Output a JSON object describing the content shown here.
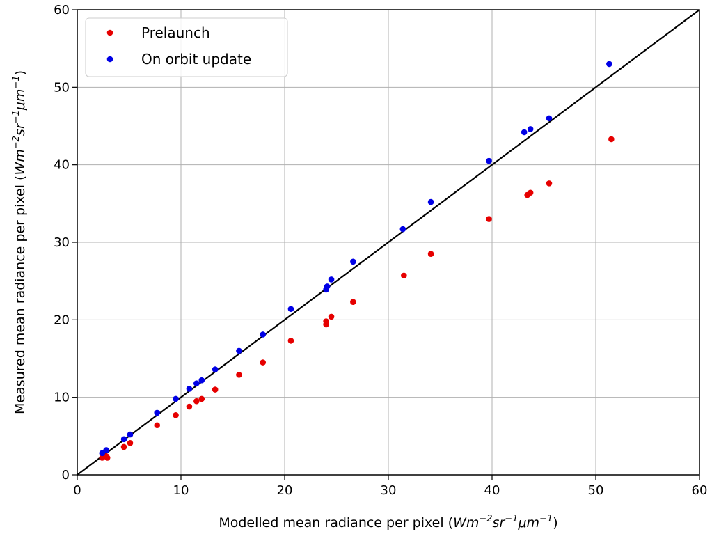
{
  "chart_data": {
    "type": "scatter",
    "xlabel": {
      "text": "Modelled mean radiance per pixel",
      "unit_prefix": "(",
      "unit_terms": [
        [
          "W",
          ""
        ],
        [
          "m",
          "−2"
        ],
        [
          "sr",
          "−1"
        ],
        [
          "μm",
          "−1"
        ]
      ],
      "unit_suffix": ")"
    },
    "ylabel": {
      "text": "Measured mean radiance per pixel",
      "unit_prefix": "(",
      "unit_terms": [
        [
          "W",
          ""
        ],
        [
          "m",
          "−2"
        ],
        [
          "sr",
          "−1"
        ],
        [
          "μm",
          "−1"
        ]
      ],
      "unit_suffix": ")"
    },
    "xlim": [
      0,
      60
    ],
    "ylim": [
      0,
      60
    ],
    "xticks": [
      "0",
      "10",
      "20",
      "30",
      "40",
      "50",
      "60"
    ],
    "yticks": [
      "0",
      "10",
      "20",
      "30",
      "40",
      "50",
      "60"
    ],
    "grid": true,
    "legend_position": "top-left",
    "reference_line": {
      "from": [
        0,
        0
      ],
      "to": [
        60,
        60
      ],
      "color": "#000000"
    },
    "series": [
      {
        "name": "Prelaunch",
        "color": "#e60000",
        "points": [
          [
            2.4,
            2.2
          ],
          [
            2.8,
            2.4
          ],
          [
            2.9,
            2.2
          ],
          [
            4.5,
            3.6
          ],
          [
            5.1,
            4.1
          ],
          [
            7.7,
            6.4
          ],
          [
            9.5,
            7.7
          ],
          [
            10.8,
            8.8
          ],
          [
            11.5,
            9.5
          ],
          [
            12.0,
            9.8
          ],
          [
            13.3,
            11.0
          ],
          [
            15.6,
            12.9
          ],
          [
            17.9,
            14.5
          ],
          [
            20.6,
            17.3
          ],
          [
            24.0,
            19.4
          ],
          [
            24.0,
            19.8
          ],
          [
            24.5,
            20.4
          ],
          [
            26.6,
            22.3
          ],
          [
            31.5,
            25.7
          ],
          [
            34.1,
            28.5
          ],
          [
            39.7,
            33.0
          ],
          [
            43.4,
            36.1
          ],
          [
            43.7,
            36.4
          ],
          [
            45.5,
            37.6
          ],
          [
            51.5,
            43.3
          ]
        ]
      },
      {
        "name": "On orbit update",
        "color": "#0000e6",
        "points": [
          [
            2.4,
            2.8
          ],
          [
            2.8,
            3.2
          ],
          [
            4.5,
            4.6
          ],
          [
            5.1,
            5.2
          ],
          [
            7.7,
            8.0
          ],
          [
            9.5,
            9.8
          ],
          [
            10.8,
            11.1
          ],
          [
            11.5,
            11.8
          ],
          [
            12.0,
            12.2
          ],
          [
            13.3,
            13.6
          ],
          [
            15.6,
            16.0
          ],
          [
            17.9,
            18.1
          ],
          [
            20.6,
            21.4
          ],
          [
            24.0,
            23.9
          ],
          [
            24.1,
            24.3
          ],
          [
            24.5,
            25.2
          ],
          [
            26.6,
            27.5
          ],
          [
            31.4,
            31.7
          ],
          [
            34.1,
            35.2
          ],
          [
            39.7,
            40.5
          ],
          [
            43.1,
            44.2
          ],
          [
            43.7,
            44.6
          ],
          [
            45.5,
            46.0
          ],
          [
            51.3,
            53.0
          ]
        ]
      }
    ]
  }
}
